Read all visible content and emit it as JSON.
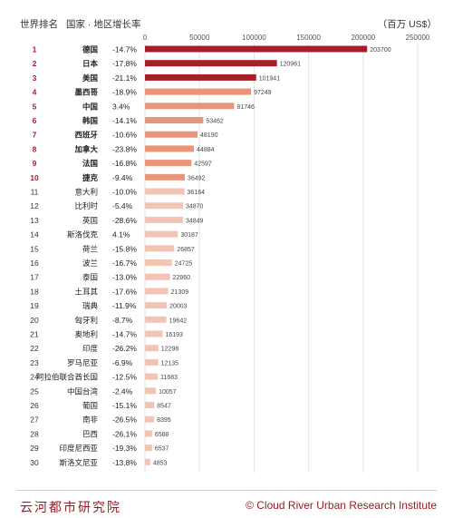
{
  "headers": {
    "rank": "世界排名",
    "country": "国家 · 地区",
    "growth": "增长率",
    "unit": "（百万 US$）"
  },
  "footer": {
    "left": "云河都市研究院",
    "right": "© Cloud River Urban Research Institute"
  },
  "colors": {
    "top3": "#a3202a",
    "top10": "#e8957a",
    "rest": "#f2c4b3",
    "rank_top10": "#a3202a",
    "rank_rest": "#333333"
  },
  "chart_data": {
    "type": "bar",
    "orientation": "horizontal",
    "xlim": [
      0,
      250000
    ],
    "xticks": [
      "0",
      "50000",
      "100000",
      "150000",
      "200000",
      "250000"
    ],
    "grid": true,
    "rows": [
      {
        "rank": "1",
        "country": "德国",
        "growth": "-14.7%",
        "value": 203700
      },
      {
        "rank": "2",
        "country": "日本",
        "growth": "-17.8%",
        "value": 120961
      },
      {
        "rank": "3",
        "country": "美国",
        "growth": "-21.1%",
        "value": 101941
      },
      {
        "rank": "4",
        "country": "墨西哥",
        "growth": "-18.9%",
        "value": 97249
      },
      {
        "rank": "5",
        "country": "中国",
        "growth": "3.4%",
        "value": 81746
      },
      {
        "rank": "6",
        "country": "韩国",
        "growth": "-14.1%",
        "value": 53462
      },
      {
        "rank": "7",
        "country": "西班牙",
        "growth": "-10.6%",
        "value": 48190
      },
      {
        "rank": "8",
        "country": "加拿大",
        "growth": "-23.8%",
        "value": 44884
      },
      {
        "rank": "9",
        "country": "法国",
        "growth": "-16.8%",
        "value": 42597
      },
      {
        "rank": "10",
        "country": "捷克",
        "growth": "-9.4%",
        "value": 36492
      },
      {
        "rank": "11",
        "country": "意大利",
        "growth": "-10.0%",
        "value": 36164
      },
      {
        "rank": "12",
        "country": "比利时",
        "growth": "-5.4%",
        "value": 34870
      },
      {
        "rank": "13",
        "country": "英国",
        "growth": "-28.6%",
        "value": 34849
      },
      {
        "rank": "14",
        "country": "斯洛伐克",
        "growth": "4.1%",
        "value": 30187
      },
      {
        "rank": "15",
        "country": "荷兰",
        "growth": "-15.8%",
        "value": 26857
      },
      {
        "rank": "16",
        "country": "波兰",
        "growth": "-16.7%",
        "value": 24725
      },
      {
        "rank": "17",
        "country": "泰国",
        "growth": "-13.0%",
        "value": 22860
      },
      {
        "rank": "18",
        "country": "土耳其",
        "growth": "-17.6%",
        "value": 21309
      },
      {
        "rank": "19",
        "country": "瑞典",
        "growth": "-11.9%",
        "value": 20003
      },
      {
        "rank": "20",
        "country": "匈牙利",
        "growth": "-8.7%",
        "value": 19642
      },
      {
        "rank": "21",
        "country": "奥地利",
        "growth": "-14.7%",
        "value": 16193
      },
      {
        "rank": "22",
        "country": "印度",
        "growth": "-26.2%",
        "value": 12298
      },
      {
        "rank": "23",
        "country": "罗马尼亚",
        "growth": "-6.9%",
        "value": 12135
      },
      {
        "rank": "24",
        "country": "阿拉伯联合酋长国",
        "growth": "-12.5%",
        "value": 11683
      },
      {
        "rank": "25",
        "country": "中国台湾",
        "growth": "-2.4%",
        "value": 10057
      },
      {
        "rank": "26",
        "country": "葡国",
        "growth": "-15.1%",
        "value": 8547
      },
      {
        "rank": "27",
        "country": "南非",
        "growth": "-26.5%",
        "value": 8395
      },
      {
        "rank": "28",
        "country": "巴西",
        "growth": "-26.1%",
        "value": 6588
      },
      {
        "rank": "29",
        "country": "印度尼西亚",
        "growth": "-19.3%",
        "value": 6537
      },
      {
        "rank": "30",
        "country": "斯洛文尼亚",
        "growth": "-13.8%",
        "value": 4853
      }
    ]
  }
}
